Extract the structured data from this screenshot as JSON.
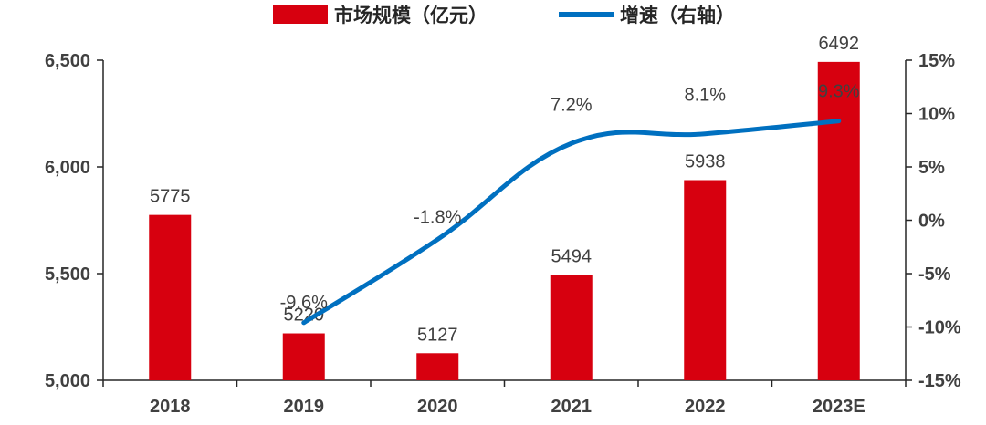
{
  "chart_data": {
    "type": "bar",
    "categories": [
      "2018",
      "2019",
      "2020",
      "2021",
      "2022",
      "2023E"
    ],
    "series": [
      {
        "name": "市场规模（亿元）",
        "type": "bar",
        "axis": "left",
        "values": [
          5775,
          5220,
          5127,
          5494,
          5938,
          6492
        ],
        "labels": [
          "5775",
          "5220",
          "5127",
          "5494",
          "5938",
          "6492"
        ],
        "color": "#D7000F"
      },
      {
        "name": "增速（右轴）",
        "type": "line",
        "axis": "right",
        "values": [
          null,
          -9.6,
          -1.8,
          7.2,
          8.1,
          9.3
        ],
        "labels": [
          "",
          "-9.6%",
          "-1.8%",
          "7.2%",
          "8.1%",
          "9.3%"
        ],
        "color": "#0070C0"
      }
    ],
    "y_left": {
      "min": 5000,
      "max": 6500,
      "ticks": [
        5000,
        5500,
        6000,
        6500
      ],
      "tick_labels": [
        "5,000",
        "5,500",
        "6,000",
        "6,500"
      ]
    },
    "y_right": {
      "min": -15,
      "max": 15,
      "ticks": [
        -15,
        -10,
        -5,
        0,
        5,
        10,
        15
      ],
      "tick_labels": [
        "-15%",
        "-10%",
        "-5%",
        "0%",
        "5%",
        "10%",
        "15%"
      ]
    },
    "title": "",
    "xlabel": "",
    "ylabel": "",
    "grid": false,
    "legend_position": "top-center"
  }
}
